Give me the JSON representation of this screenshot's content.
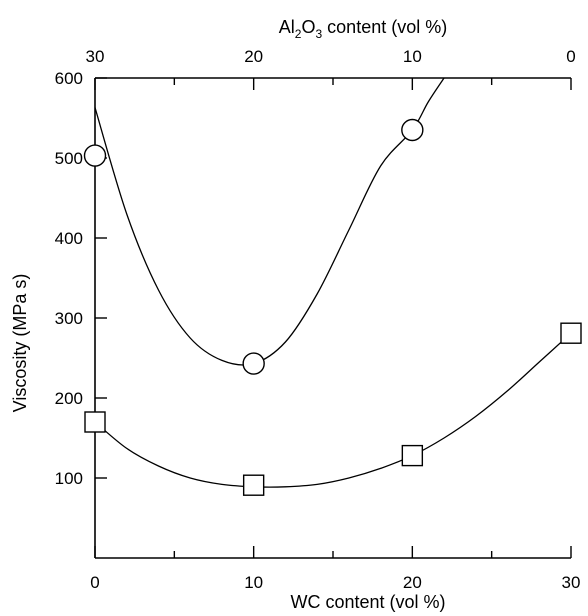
{
  "chart_data": {
    "type": "scatter",
    "title": "",
    "xlabel": "WC content (vol %)",
    "x2label_parts": [
      "Al",
      "2",
      "O",
      "3",
      " content (vol %)"
    ],
    "ylabel": "Viscosity (MPa s)",
    "xlim": [
      0,
      30
    ],
    "ylim": [
      0,
      600
    ],
    "x_ticks": [
      0,
      10,
      20,
      30
    ],
    "x_minor_ticks": [
      5,
      15,
      25
    ],
    "x_tick_labels": [
      "0",
      "10",
      "20",
      "30"
    ],
    "x2_ticks": [
      30,
      20,
      10,
      0
    ],
    "x2_tick_labels": [
      "30",
      "20",
      "10",
      "0"
    ],
    "y_ticks": [
      100,
      200,
      300,
      400,
      500,
      600
    ],
    "y_tick_labels": [
      "100",
      "200",
      "300",
      "400",
      "500",
      "600"
    ],
    "grid": false,
    "series": [
      {
        "marker": "circle",
        "x": [
          0,
          10,
          20
        ],
        "y": [
          503,
          243,
          535
        ],
        "fit_x": [
          0,
          2,
          4,
          6,
          8,
          10,
          12,
          14,
          16,
          18,
          20,
          21,
          22
        ],
        "fit_y": [
          563,
          430,
          335,
          275,
          247,
          243,
          270,
          330,
          410,
          490,
          535,
          570,
          600
        ]
      },
      {
        "marker": "square",
        "x": [
          0,
          10,
          20,
          30
        ],
        "y": [
          170,
          91,
          128,
          281
        ],
        "fit_x": [
          0,
          2,
          4,
          6,
          8,
          10,
          12,
          14,
          16,
          18,
          20,
          22,
          24,
          26,
          28,
          30
        ],
        "fit_y": [
          170,
          137,
          115,
          100,
          92,
          89,
          89,
          92,
          100,
          112,
          128,
          150,
          177,
          209,
          245,
          281
        ]
      }
    ]
  }
}
